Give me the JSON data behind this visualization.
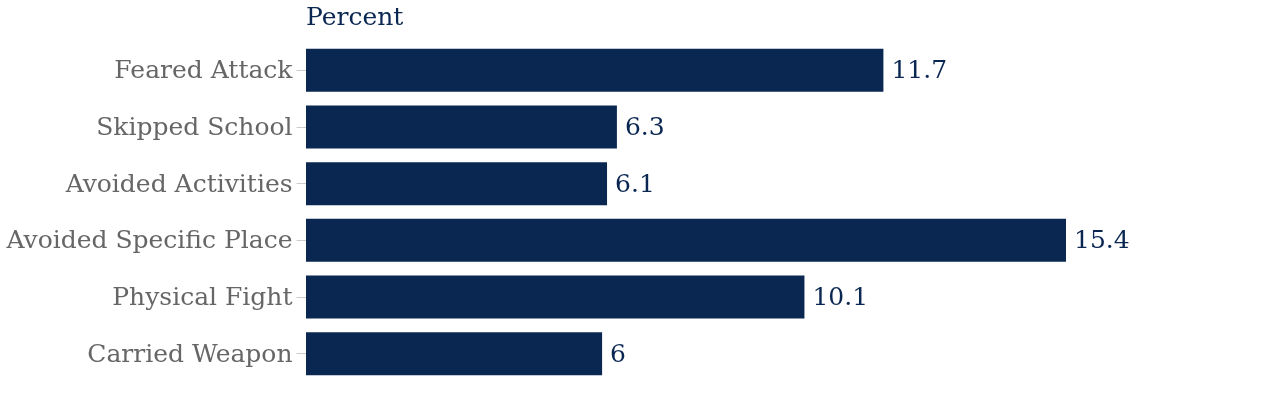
{
  "chart_data": {
    "type": "bar",
    "orientation": "horizontal",
    "title": "Percent",
    "categories": [
      "Feared Attack",
      "Skipped School",
      "Avoided Activities",
      "Avoided Specific Place",
      "Physical Fight",
      "Carried Weapon"
    ],
    "values": [
      11.7,
      6.3,
      6.1,
      15.4,
      10.1,
      6
    ],
    "color": "#0a2752",
    "data_labels": true
  }
}
